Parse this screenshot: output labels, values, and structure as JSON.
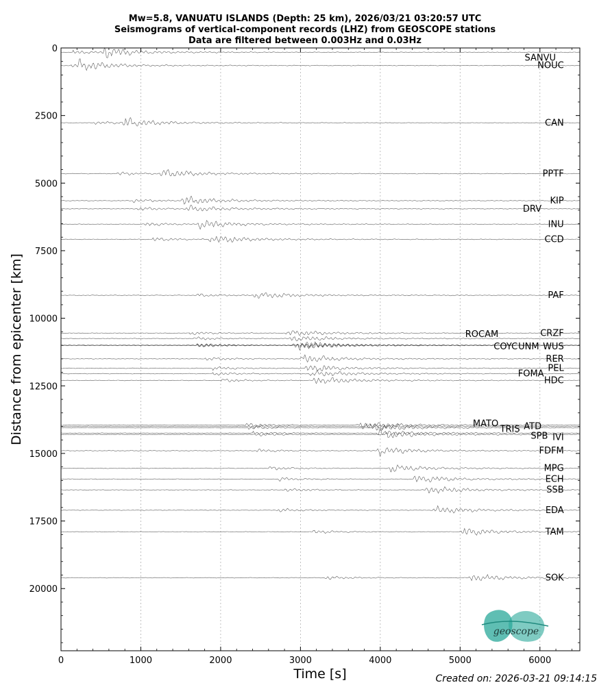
{
  "chart_data": {
    "type": "line",
    "title_lines": [
      "Mw=5.8, VANUATU ISLANDS (Depth: 25 km), 2026/03/21 03:20:57 UTC",
      "Seismograms of vertical-component records (LHZ) from GEOSCOPE stations",
      "Data are filtered between 0.003Hz and 0.03Hz"
    ],
    "xlabel": "Time [s]",
    "ylabel": "Distance from epicenter [km]",
    "xlim": [
      0,
      6500
    ],
    "ylim": [
      22300,
      0
    ],
    "y_inverted": true,
    "xticks": [
      0,
      1000,
      2000,
      3000,
      4000,
      5000,
      6000
    ],
    "yticks": [
      0,
      2500,
      5000,
      7500,
      10000,
      12500,
      15000,
      17500,
      20000
    ],
    "vertical_grid": "dotted",
    "stations": [
      {
        "name": "SANVU",
        "distance": 160,
        "arrivals": [
          150,
          500
        ],
        "amp": 1.2
      },
      {
        "name": "NOUC",
        "distance": 650,
        "arrivals": [
          120,
          200
        ],
        "amp": 1.0
      },
      {
        "name": "CAN",
        "distance": 2770,
        "arrivals": [
          400,
          760
        ],
        "amp": 1.1
      },
      {
        "name": "PPTF",
        "distance": 4650,
        "arrivals": [
          700,
          1230
        ],
        "amp": 1.0
      },
      {
        "name": "KIP",
        "distance": 5650,
        "arrivals": [
          900,
          1500
        ],
        "amp": 1.1
      },
      {
        "name": "DRV",
        "distance": 5950,
        "arrivals": [
          950,
          1550
        ],
        "amp": 0.7
      },
      {
        "name": "INU",
        "distance": 6520,
        "arrivals": [
          1050,
          1700
        ],
        "amp": 0.9
      },
      {
        "name": "CCD",
        "distance": 7080,
        "arrivals": [
          1150,
          1850
        ],
        "amp": 0.9
      },
      {
        "name": "PAF",
        "distance": 9150,
        "arrivals": [
          1700,
          2400
        ],
        "amp": 0.8
      },
      {
        "name": "CRZF",
        "distance": 10550,
        "arrivals": [
          1600,
          2800
        ],
        "amp": 0.7
      },
      {
        "name": "ROCAM",
        "distance": 10750,
        "arrivals": [
          1650,
          2850
        ],
        "amp": 0.7
      },
      {
        "name": "COYC",
        "distance": 11000,
        "arrivals": [
          1700,
          2900
        ],
        "amp": 0.9
      },
      {
        "name": "UNM",
        "distance": 11000,
        "arrivals": [
          1700,
          2950
        ],
        "amp": 0.8
      },
      {
        "name": "WUS",
        "distance": 11000,
        "arrivals": [
          1700,
          3000
        ],
        "amp": 0.8
      },
      {
        "name": "RER",
        "distance": 11500,
        "arrivals": [
          1800,
          3000
        ],
        "amp": 1.0
      },
      {
        "name": "PEL",
        "distance": 11850,
        "arrivals": [
          1900,
          3050
        ],
        "amp": 0.8
      },
      {
        "name": "FOMA",
        "distance": 12050,
        "arrivals": [
          1900,
          3100
        ],
        "amp": 0.7
      },
      {
        "name": "HDC",
        "distance": 12300,
        "arrivals": [
          2000,
          3150
        ],
        "amp": 0.9
      },
      {
        "name": "MATO",
        "distance": 13950,
        "arrivals": [
          2300,
          3700
        ],
        "amp": 0.8
      },
      {
        "name": "TRIS",
        "distance": 14000,
        "arrivals": [
          2350,
          3800
        ],
        "amp": 0.8
      },
      {
        "name": "ATD",
        "distance": 14050,
        "arrivals": [
          2350,
          3900
        ],
        "amp": 0.8
      },
      {
        "name": "SPB",
        "distance": 14250,
        "arrivals": [
          2400,
          3950
        ],
        "amp": 0.9
      },
      {
        "name": "IVI",
        "distance": 14300,
        "arrivals": [
          2400,
          4050
        ],
        "amp": 0.8
      },
      {
        "name": "FDFM",
        "distance": 14900,
        "arrivals": [
          2450,
          3950
        ],
        "amp": 0.9
      },
      {
        "name": "MPG",
        "distance": 15550,
        "arrivals": [
          2600,
          4100
        ],
        "amp": 0.9
      },
      {
        "name": "ECH",
        "distance": 15950,
        "arrivals": [
          2700,
          4400
        ],
        "amp": 0.9
      },
      {
        "name": "SSB",
        "distance": 16350,
        "arrivals": [
          2800,
          4550
        ],
        "amp": 0.9
      },
      {
        "name": "EDA",
        "distance": 17100,
        "arrivals": [
          2700,
          4650
        ],
        "amp": 0.9
      },
      {
        "name": "TAM",
        "distance": 17900,
        "arrivals": [
          3150,
          5000
        ],
        "amp": 0.9
      },
      {
        "name": "SOK",
        "distance": 19600,
        "arrivals": [
          3300,
          5100
        ],
        "amp": 0.8
      }
    ]
  },
  "logo": {
    "text": "geoscope",
    "color": "#2aa89a"
  },
  "footer": {
    "created": "Created on: 2026-03-21 09:14:15"
  }
}
